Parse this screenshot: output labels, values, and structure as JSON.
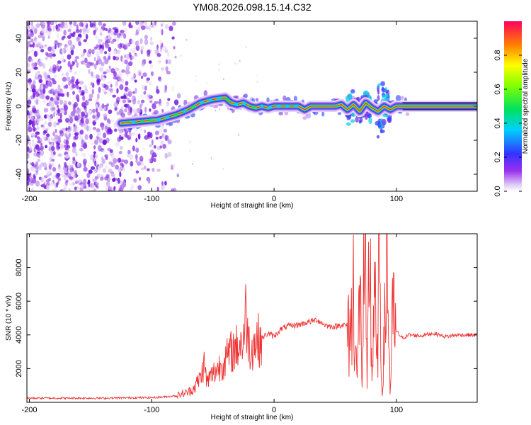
{
  "title": "YM08.2026.098.15.14.C32",
  "chart_data": [
    {
      "type": "heatmap",
      "xlabel": "Height of straight line (km)",
      "ylabel": "Frequency (Hz)",
      "xlim": [
        -202,
        166
      ],
      "ylim": [
        -50,
        50
      ],
      "xticks": [
        -200,
        -100,
        0,
        100
      ],
      "yticks": [
        -40,
        -20,
        0,
        20,
        40
      ],
      "colorbar": {
        "label": "Normalized spectral amplitude",
        "range": [
          0,
          1
        ],
        "ticks": [
          0.0,
          0.2,
          0.4,
          0.6,
          0.8
        ]
      },
      "ridge": {
        "x": [
          -125,
          -110,
          -95,
          -80,
          -70,
          -60,
          -50,
          -40,
          -35,
          -30,
          -25,
          -20,
          -15,
          -10,
          -5,
          0,
          10,
          20,
          25,
          30,
          40,
          50,
          55,
          60,
          65,
          70,
          75,
          80,
          85,
          90,
          95,
          100,
          110,
          130,
          150,
          166
        ],
        "y": [
          -10,
          -9,
          -8,
          -5,
          -2,
          2,
          4,
          5,
          2,
          1,
          2,
          0,
          -1,
          0,
          -1,
          0,
          0,
          0,
          -2,
          0,
          0,
          0,
          1,
          -2,
          1,
          -3,
          2,
          -1,
          -3,
          0,
          -2,
          0,
          0,
          0,
          0,
          0
        ]
      }
    },
    {
      "type": "line",
      "xlabel": "Height of straight line (km)",
      "ylabel": "SNR (10 * v/v)",
      "xlim": [
        -202,
        166
      ],
      "ylim": [
        0,
        10000
      ],
      "xticks": [
        -200,
        -100,
        0,
        100
      ],
      "yticks": [
        2000,
        4000,
        6000,
        8000
      ],
      "series": [
        {
          "name": "SNR",
          "color": "#ee3333",
          "x": [
            -202,
            -180,
            -160,
            -140,
            -120,
            -100,
            -90,
            -80,
            -70,
            -65,
            -60,
            -57,
            -55,
            -50,
            -45,
            -40,
            -35,
            -30,
            -25,
            -23,
            -20,
            -15,
            -10,
            -5,
            0,
            5,
            10,
            20,
            25,
            30,
            35,
            40,
            45,
            50,
            55,
            60,
            64,
            65,
            68,
            70,
            72,
            74,
            76,
            78,
            80,
            82,
            84,
            86,
            88,
            90,
            92,
            95,
            97,
            100,
            105,
            110,
            120,
            130,
            140,
            150,
            166
          ],
          "y": [
            250,
            250,
            250,
            250,
            270,
            280,
            320,
            400,
            600,
            900,
            1500,
            2300,
            1200,
            1700,
            2100,
            2500,
            3000,
            3300,
            3700,
            5300,
            3200,
            3600,
            3800,
            4100,
            3900,
            4300,
            4500,
            4600,
            4700,
            4800,
            4900,
            4650,
            4500,
            4500,
            4600,
            4550,
            4500,
            7500,
            1000,
            7000,
            1500,
            9300,
            500,
            9900,
            1200,
            7500,
            1500,
            9200,
            1000,
            3000,
            9100,
            400,
            5000,
            4200,
            3800,
            4000,
            3950,
            4100,
            3900,
            4000,
            4000
          ]
        }
      ]
    }
  ]
}
